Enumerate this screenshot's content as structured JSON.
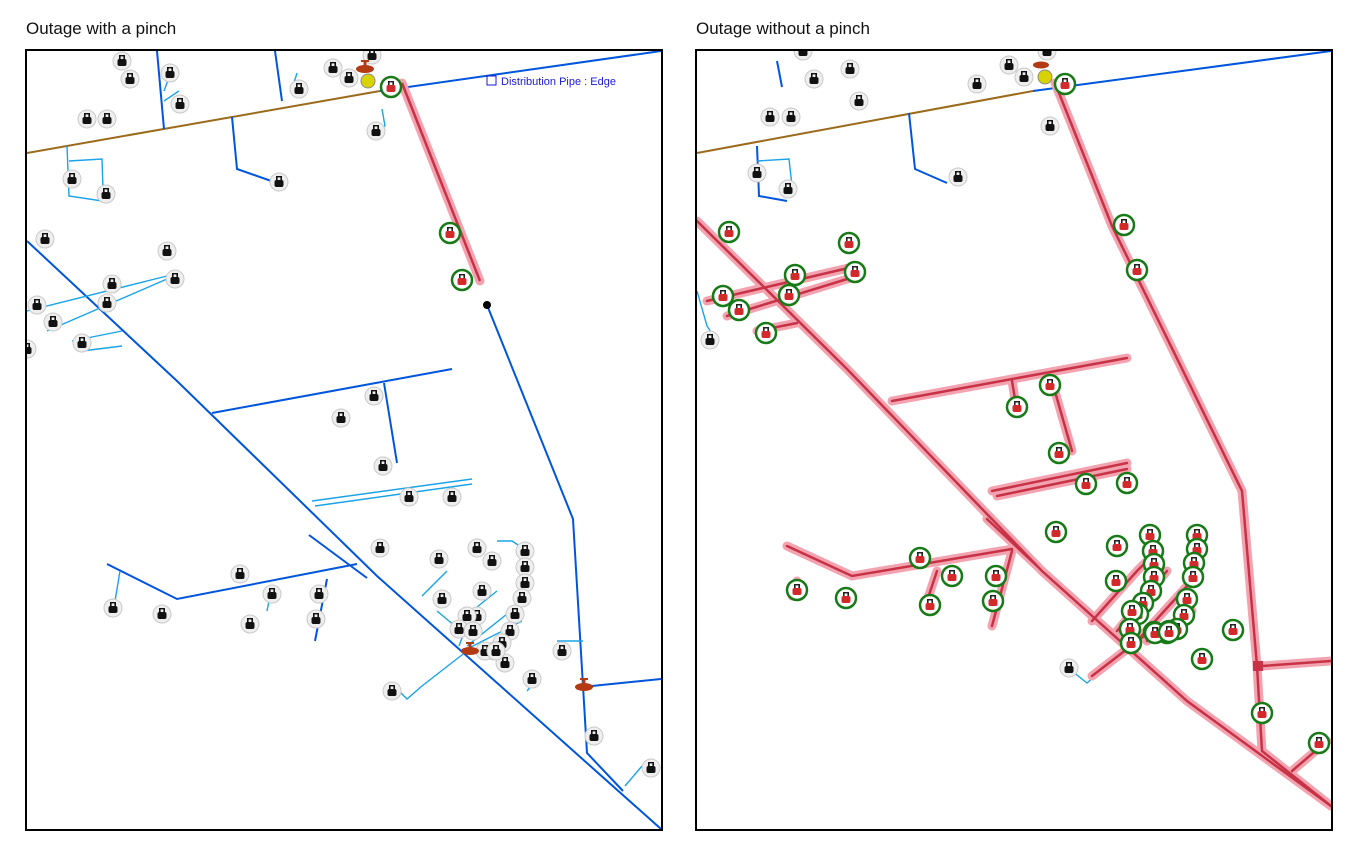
{
  "panels": [
    {
      "title": "Outage with a pinch",
      "label_text": "Distribution Pipe : Edge"
    },
    {
      "title": "Outage without a pinch"
    }
  ],
  "colors": {
    "main_pipe": "#0055dd",
    "service_line": "#1aa3e8",
    "transmission_pipe": "#9b6a1a",
    "outage_highlight": "#e36b7e",
    "outage_core": "#c83246",
    "affected_ring": "#177a17",
    "meter_normal": "#111111",
    "meter_affected": "#d22a2a",
    "valve": "#b33a12"
  },
  "legend_icons": [
    "meter-icon",
    "affected-meter-icon",
    "valve-icon",
    "regulator-icon",
    "edge-label-icon"
  ]
}
